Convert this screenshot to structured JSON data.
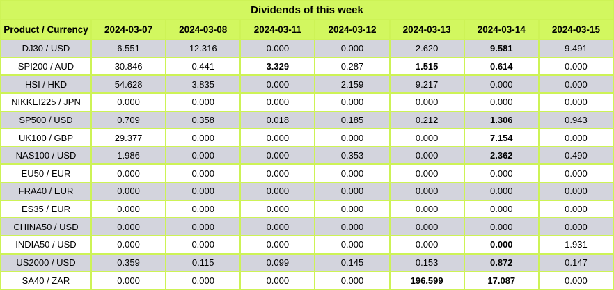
{
  "colors": {
    "header_green": "#d2f75f",
    "border_green": "#cdf356",
    "row_gray": "#d3d4dd",
    "row_white": "#ffffff",
    "text": "#000000"
  },
  "chart_data": {
    "type": "table",
    "title": "Dividends of this week",
    "columns": [
      "Product / Currency",
      "2024-03-07",
      "2024-03-08",
      "2024-03-11",
      "2024-03-12",
      "2024-03-13",
      "2024-03-14",
      "2024-03-15"
    ],
    "rows": [
      {
        "product": "DJ30 / USD",
        "values": [
          "6.551",
          "12.316",
          "0.000",
          "0.000",
          "2.620",
          "9.581",
          "9.491"
        ],
        "bold_value_indices": [
          5
        ]
      },
      {
        "product": "SPI200 / AUD",
        "values": [
          "30.846",
          "0.441",
          "3.329",
          "0.287",
          "1.515",
          "0.614",
          "0.000"
        ],
        "bold_value_indices": [
          2,
          4,
          5
        ]
      },
      {
        "product": "HSI / HKD",
        "values": [
          "54.628",
          "3.835",
          "0.000",
          "2.159",
          "9.217",
          "0.000",
          "0.000"
        ],
        "bold_value_indices": []
      },
      {
        "product": "NIKKEI225 / JPN",
        "values": [
          "0.000",
          "0.000",
          "0.000",
          "0.000",
          "0.000",
          "0.000",
          "0.000"
        ],
        "bold_value_indices": []
      },
      {
        "product": "SP500 / USD",
        "values": [
          "0.709",
          "0.358",
          "0.018",
          "0.185",
          "0.212",
          "1.306",
          "0.943"
        ],
        "bold_value_indices": [
          5
        ]
      },
      {
        "product": "UK100 / GBP",
        "values": [
          "29.377",
          "0.000",
          "0.000",
          "0.000",
          "0.000",
          "7.154",
          "0.000"
        ],
        "bold_value_indices": [
          5
        ]
      },
      {
        "product": "NAS100 / USD",
        "values": [
          "1.986",
          "0.000",
          "0.000",
          "0.353",
          "0.000",
          "2.362",
          "0.490"
        ],
        "bold_value_indices": [
          5
        ]
      },
      {
        "product": "EU50 / EUR",
        "values": [
          "0.000",
          "0.000",
          "0.000",
          "0.000",
          "0.000",
          "0.000",
          "0.000"
        ],
        "bold_value_indices": []
      },
      {
        "product": "FRA40 / EUR",
        "values": [
          "0.000",
          "0.000",
          "0.000",
          "0.000",
          "0.000",
          "0.000",
          "0.000"
        ],
        "bold_value_indices": []
      },
      {
        "product": "ES35 / EUR",
        "values": [
          "0.000",
          "0.000",
          "0.000",
          "0.000",
          "0.000",
          "0.000",
          "0.000"
        ],
        "bold_value_indices": []
      },
      {
        "product": "CHINA50 / USD",
        "values": [
          "0.000",
          "0.000",
          "0.000",
          "0.000",
          "0.000",
          "0.000",
          "0.000"
        ],
        "bold_value_indices": []
      },
      {
        "product": "INDIA50 / USD",
        "values": [
          "0.000",
          "0.000",
          "0.000",
          "0.000",
          "0.000",
          "0.000",
          "1.931"
        ],
        "bold_value_indices": [
          5
        ]
      },
      {
        "product": "US2000 / USD",
        "values": [
          "0.359",
          "0.115",
          "0.099",
          "0.145",
          "0.153",
          "0.872",
          "0.147"
        ],
        "bold_value_indices": [
          5
        ]
      },
      {
        "product": "SA40 / ZAR",
        "values": [
          "0.000",
          "0.000",
          "0.000",
          "0.000",
          "196.599",
          "17.087",
          "0.000"
        ],
        "bold_value_indices": [
          4,
          5
        ]
      }
    ]
  }
}
